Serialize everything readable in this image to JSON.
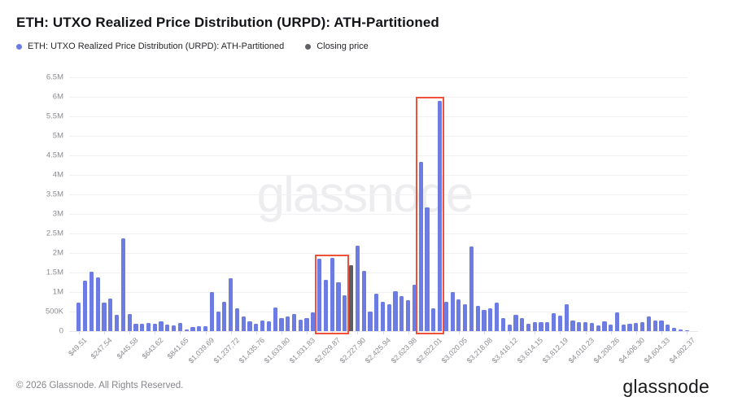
{
  "header": {
    "title": "ETH: UTXO Realized Price Distribution (URPD): ATH-Partitioned"
  },
  "legend": {
    "items": [
      {
        "label": "ETH: UTXO Realized Price Distribution (URPD): ATH-Partitioned",
        "color": "#6c7ce3"
      },
      {
        "label": "Closing price",
        "color": "#606166"
      }
    ]
  },
  "watermark": "glassnode",
  "footer": {
    "copyright": "© 2026 Glassnode. All Rights Reserved.",
    "logo": "glassnode"
  },
  "chart_data": {
    "type": "bar",
    "title": "ETH: UTXO Realized Price Distribution (URPD): ATH-Partitioned",
    "xlabel": "",
    "ylabel": "",
    "grid": true,
    "legend_position": "top-left",
    "ylim_millions": [
      0,
      6.5
    ],
    "ytick_labels": [
      "0",
      "500K",
      "1M",
      "1.5M",
      "2M",
      "2.5M",
      "3M",
      "3.5M",
      "4M",
      "4.5M",
      "5M",
      "5.5M",
      "6M",
      "6.5M"
    ],
    "x_label_every_n_bars": 4,
    "xtick_labels": [
      "$49.51",
      "$247.54",
      "$445.58",
      "$643.62",
      "$841.65",
      "$1,039.69",
      "$1,237.72",
      "$1,435.76",
      "$1,633.80",
      "$1,831.83",
      "$2,029.87",
      "$2,227.90",
      "$2,425.94",
      "$2,623.98",
      "$2,822.01",
      "$3,020.05",
      "$3,218.08",
      "$3,416.12",
      "$3,614.15",
      "$3,812.19",
      "$4,010.23",
      "$4,208.26",
      "$4,406.30",
      "$4,604.33",
      "$4,802.37"
    ],
    "bin_width_usd": 49.51,
    "series": [
      {
        "name": "ETH: UTXO Realized Price Distribution (URPD): ATH-Partitioned",
        "color": "#6c7ce3"
      }
    ],
    "values_millions": [
      0.73,
      1.29,
      1.52,
      1.38,
      0.72,
      0.83,
      0.42,
      2.38,
      0.44,
      0.18,
      0.18,
      0.2,
      0.18,
      0.26,
      0.16,
      0.15,
      0.2,
      0.05,
      0.1,
      0.12,
      0.13,
      0.99,
      0.51,
      0.76,
      1.36,
      0.58,
      0.38,
      0.24,
      0.18,
      0.28,
      0.24,
      0.6,
      0.33,
      0.38,
      0.44,
      0.3,
      0.33,
      0.48,
      1.85,
      1.31,
      1.87,
      1.26,
      0.91,
      1.69,
      2.18,
      1.54,
      0.49,
      0.96,
      0.75,
      0.68,
      1.03,
      0.9,
      0.79,
      1.19,
      4.33,
      3.17,
      0.58,
      5.89,
      0.76,
      1.0,
      0.82,
      0.69,
      2.17,
      0.65,
      0.55,
      0.59,
      0.72,
      0.33,
      0.17,
      0.42,
      0.34,
      0.18,
      0.23,
      0.22,
      0.23,
      0.45,
      0.39,
      0.69,
      0.27,
      0.22,
      0.23,
      0.2,
      0.15,
      0.25,
      0.17,
      0.47,
      0.17,
      0.19,
      0.2,
      0.23,
      0.38,
      0.27,
      0.27,
      0.16,
      0.09,
      0.05,
      0.03
    ],
    "closing_price_bar": {
      "index": 43,
      "value_millions": 1.69,
      "color": "#5c5c62",
      "label": "Closing price"
    },
    "highlight_boxes": [
      {
        "start_index": 38,
        "end_index": 42,
        "top_value_millions": 1.95,
        "color": "#f1503b"
      },
      {
        "start_index": 54,
        "end_index": 57,
        "top_value_millions": 6.0,
        "color": "#f1503b"
      }
    ],
    "colors": {
      "bar": "#6c7ce3",
      "closing_bar": "#5c5c62",
      "highlight": "#f1503b",
      "grid": "#f1f1f4",
      "axis_text": "#8a8b90"
    }
  }
}
